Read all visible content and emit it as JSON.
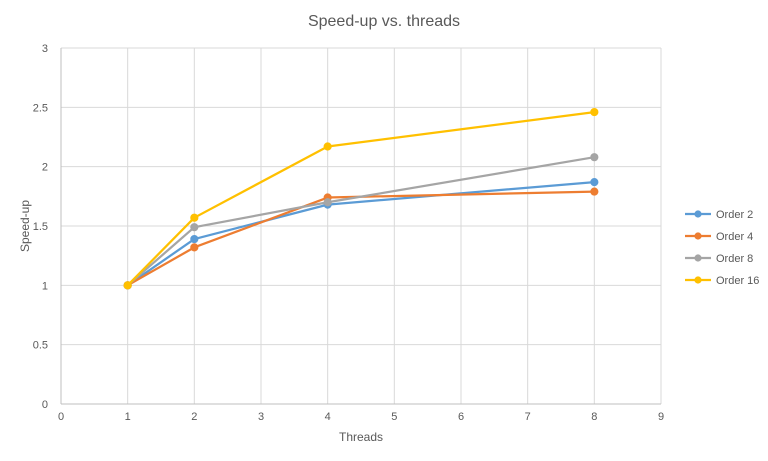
{
  "chart_data": {
    "type": "line",
    "title": "Speed-up vs. threads",
    "xlabel": "Threads",
    "ylabel": "Speed-up",
    "xlim": [
      0,
      9
    ],
    "ylim": [
      0,
      3
    ],
    "xticks": [
      0,
      1,
      2,
      3,
      4,
      5,
      6,
      7,
      8,
      9
    ],
    "yticks": [
      0,
      0.5,
      1,
      1.5,
      2,
      2.5,
      3
    ],
    "grid": true,
    "legend_position": "right",
    "x": [
      1,
      2,
      4,
      8
    ],
    "series": [
      {
        "name": "Order 2",
        "color": "#5b9bd5",
        "values": [
          1.0,
          1.39,
          1.68,
          1.87
        ]
      },
      {
        "name": "Order 4",
        "color": "#ed7d31",
        "values": [
          1.0,
          1.32,
          1.74,
          1.79
        ]
      },
      {
        "name": "Order 8",
        "color": "#a5a5a5",
        "values": [
          1.0,
          1.49,
          1.7,
          2.08
        ]
      },
      {
        "name": "Order 16",
        "color": "#ffc000",
        "values": [
          1.0,
          1.57,
          2.17,
          2.46
        ]
      }
    ]
  }
}
